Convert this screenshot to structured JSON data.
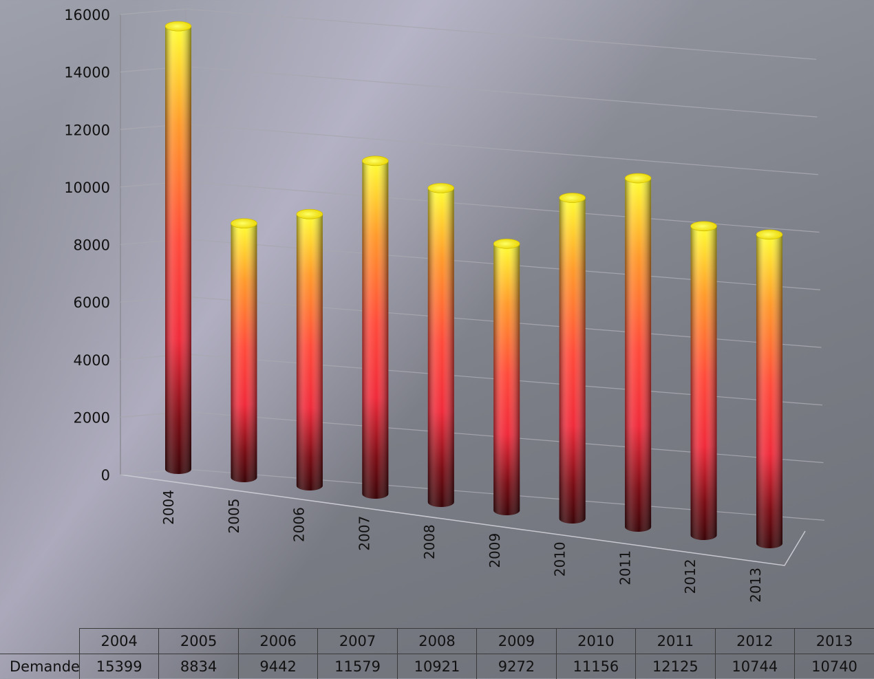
{
  "chart_data": {
    "type": "bar",
    "categories": [
      "2004",
      "2005",
      "2006",
      "2007",
      "2008",
      "2009",
      "2010",
      "2011",
      "2012",
      "2013"
    ],
    "series": [
      {
        "name": "Demandes de visa",
        "values": [
          15399,
          8834,
          9442,
          11579,
          10921,
          9272,
          11156,
          12125,
          10744,
          10740
        ]
      }
    ],
    "yticks": [
      "0",
      "2000",
      "4000",
      "6000",
      "8000",
      "10000",
      "12000",
      "14000",
      "16000"
    ],
    "ylim": [
      0,
      16000
    ],
    "grid": true,
    "legend": "none",
    "style": "3d-cylinder",
    "colors": {
      "top": "#ffff33",
      "mid": "#ff3a3a",
      "base": "#4a0a0a"
    }
  },
  "table": {
    "row_label": "Demandes de visa",
    "values": [
      "15399",
      "8834",
      "9442",
      "11579",
      "10921",
      "9272",
      "11156",
      "12125",
      "10744",
      "10740"
    ]
  }
}
